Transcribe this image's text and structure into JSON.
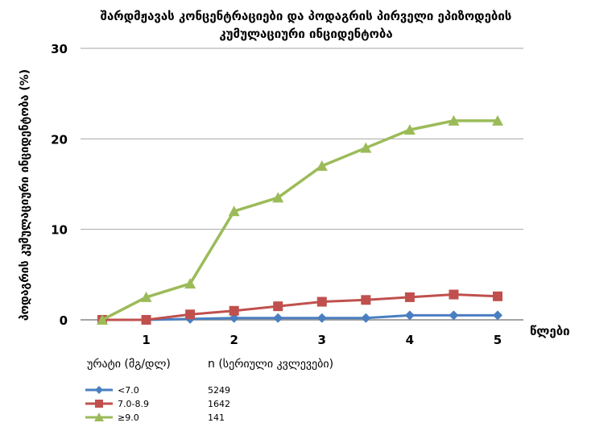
{
  "chart_data": {
    "type": "line",
    "title_line1": "შარდმჟავას კონცენტრაციები და პოდაგრის პირველი ეპიზოდების",
    "title_line2": "კუმულაციური ინციდენტობა",
    "xlabel": "წლები",
    "ylabel": "პოდაგრის კუმულაციური ინციდენტობა (%)",
    "x": [
      0.5,
      1,
      1.5,
      2,
      2.5,
      3,
      3.5,
      4,
      4.5,
      5
    ],
    "x_ticks": [
      "1",
      "2",
      "3",
      "4",
      "5"
    ],
    "y_ticks": [
      "0",
      "10",
      "20",
      "30"
    ],
    "xlim": [
      0.5,
      5
    ],
    "ylim": [
      0,
      30
    ],
    "grid": "horizontal",
    "legend_header_group": "ურატი (მგ/დლ)",
    "legend_header_n": "n (სერიული კვლევები)",
    "series": [
      {
        "name": "<7.0",
        "n": "5249",
        "color": "#4a7fc1",
        "marker": "diamond",
        "values": [
          0,
          0,
          0.1,
          0.2,
          0.2,
          0.2,
          0.2,
          0.5,
          0.5,
          0.5
        ]
      },
      {
        "name": "7.0-8.9",
        "n": "1642",
        "color": "#c0504d",
        "marker": "square",
        "values": [
          0,
          0,
          0.6,
          1.0,
          1.5,
          2.0,
          2.2,
          2.5,
          2.8,
          2.6
        ]
      },
      {
        "name": "≥9.0",
        "n": "141",
        "color": "#9bbb59",
        "marker": "triangle",
        "values": [
          0,
          2.5,
          4.0,
          12.0,
          13.5,
          17.0,
          19.0,
          21.0,
          22.0,
          22.0
        ]
      }
    ]
  }
}
